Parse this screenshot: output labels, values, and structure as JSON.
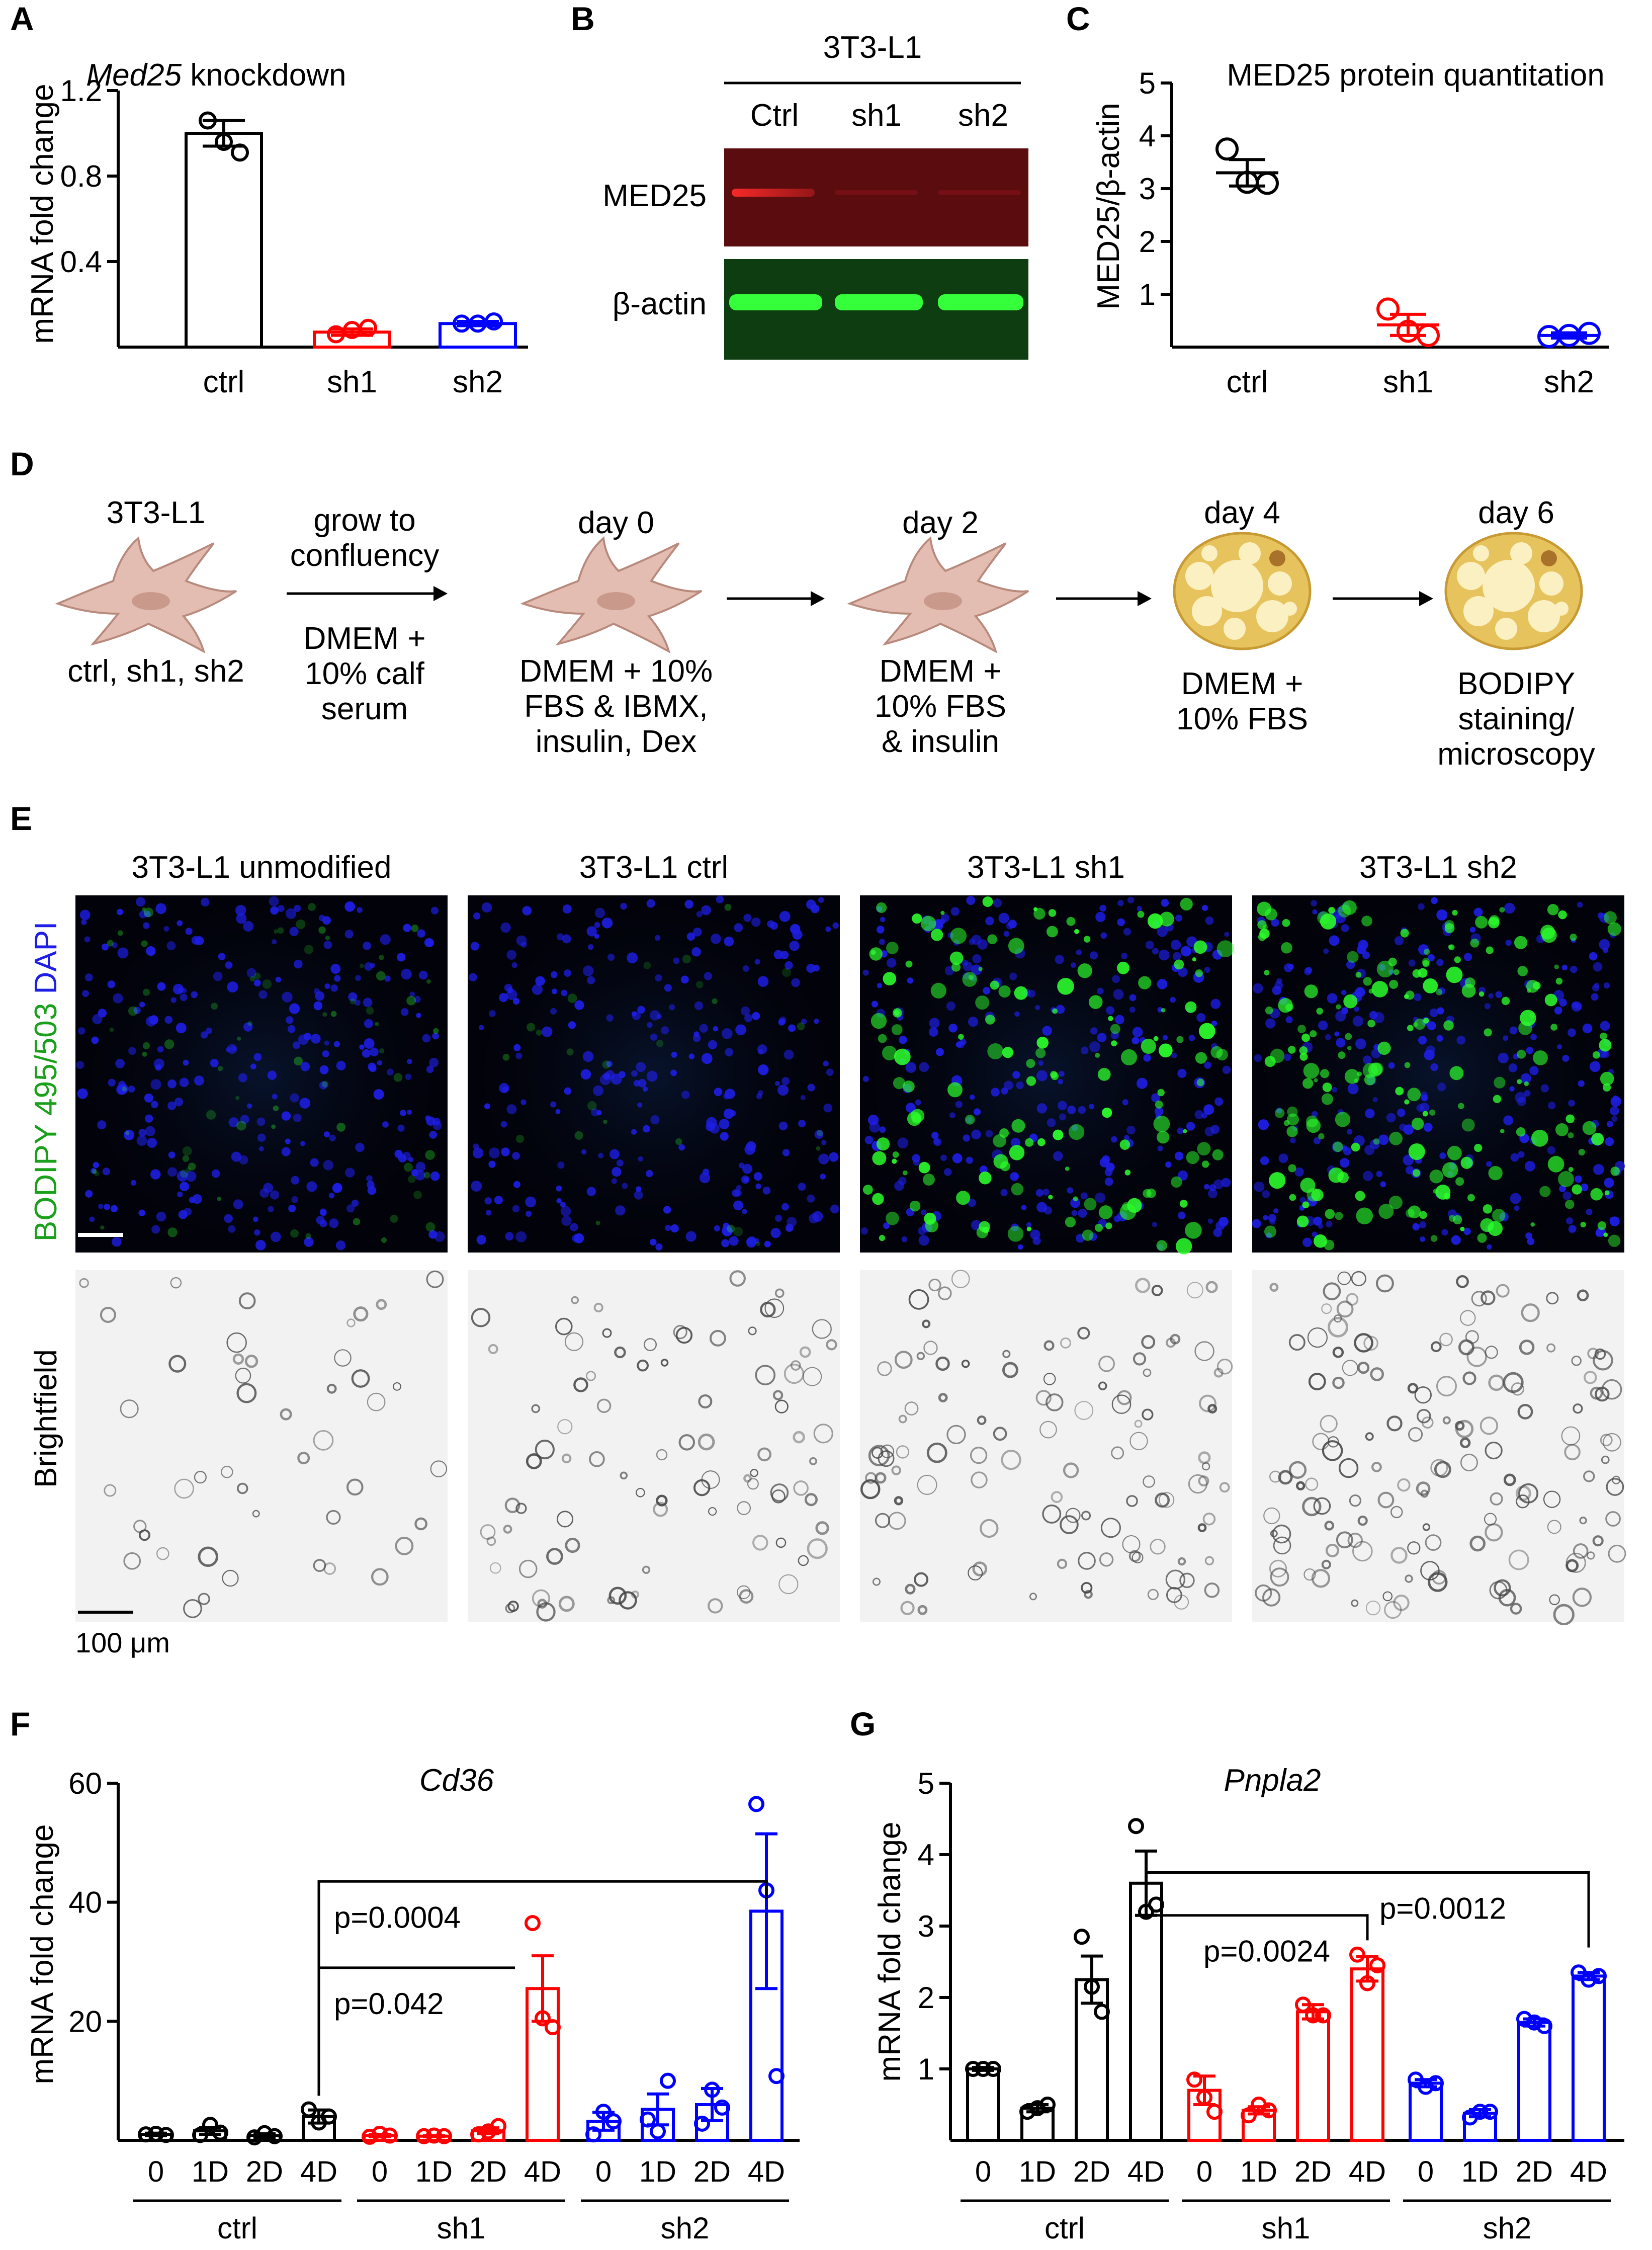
{
  "panels": {
    "A": {
      "letter": "A",
      "title_gene": "Med25",
      "title_rest": " knockdown",
      "ylabel": "mRNA fold change",
      "yticks": [
        "1.2",
        "0.8",
        "0.4"
      ],
      "ytick_values": [
        1.2,
        0.8,
        0.4
      ],
      "colors": [
        "#000000",
        "#ff0000",
        "#0000ff"
      ]
    },
    "B": {
      "letter": "B",
      "cell_line": "3T3-L1",
      "lanes": [
        "Ctrl",
        "sh1",
        "sh2"
      ],
      "rows": [
        "MED25",
        "β-actin"
      ],
      "colors": {
        "med25_bg": "#5a0c0f",
        "actin_bg": "#0f3d12",
        "red_band": "#ff2a2a",
        "green_band": "#34ff3a"
      }
    },
    "C": {
      "letter": "C",
      "title": "MED25 protein quantitation",
      "ylabel": "MED25/β-actin",
      "yticks": [
        "5",
        "4",
        "3",
        "2",
        "1"
      ],
      "ytick_values": [
        5,
        4,
        3,
        2,
        1
      ]
    },
    "D": {
      "letter": "D",
      "start_label": "3T3-L1",
      "start_sub": "ctrl, sh1, sh2",
      "step1_top": [
        "grow to",
        "confluency"
      ],
      "step1_bottom": [
        "DMEM +",
        "10% calf",
        "serum"
      ],
      "day0": "day 0",
      "day0_text": [
        "DMEM + 10%",
        "FBS & IBMX,",
        "insulin, Dex"
      ],
      "day2": "day 2",
      "day2_text": [
        "DMEM +",
        "10% FBS",
        "& insulin"
      ],
      "day4": "day 4",
      "day4_text": [
        "DMEM +",
        "10% FBS"
      ],
      "day6": "day 6",
      "day6_text": [
        "BODIPY",
        "staining/",
        "microscopy"
      ],
      "colors": {
        "fibroblast": "#e3bdb1",
        "fibroblast_stroke": "#b8897c",
        "nucleus": "#c9998c",
        "adipocyte": "#e7c35e",
        "lipid": "#fbf0c2",
        "adipocyte_stroke": "#c79a34"
      }
    },
    "E": {
      "letter": "E",
      "columns": [
        "3T3-L1 unmodified",
        "3T3-L1 ctrl",
        "3T3-L1 sh1",
        "3T3-L1 sh2"
      ],
      "row1_label_parts": [
        "BODIPY 495/503",
        "DAPI"
      ],
      "row2_label": "Brightfield",
      "scale_label": "100 μm",
      "colors": {
        "bodipy": "#1aa01a",
        "dapi": "#1e1ee6",
        "fluor_bg": "#02020a",
        "bf_bg": "#f2f2f2"
      }
    },
    "F": {
      "letter": "F",
      "title": "Cd36",
      "ylabel": "mRNA fold change",
      "yticks": [
        "60",
        "40",
        "20"
      ],
      "ytick_values": [
        60,
        40,
        20
      ],
      "time_labels": [
        "0",
        "1D",
        "2D",
        "4D"
      ],
      "groups": [
        "ctrl",
        "sh1",
        "sh2"
      ],
      "p1": "p=0.0004",
      "p2": "p=0.042"
    },
    "G": {
      "letter": "G",
      "title": "Pnpla2",
      "ylabel": "mRNA fold change",
      "yticks": [
        "5",
        "4",
        "3",
        "2",
        "1"
      ],
      "ytick_values": [
        5,
        4,
        3,
        2,
        1
      ],
      "time_labels": [
        "0",
        "1D",
        "2D",
        "4D"
      ],
      "groups": [
        "ctrl",
        "sh1",
        "sh2"
      ],
      "p1": "p=0.0024",
      "p2": "p=0.0012"
    }
  },
  "chart_data": [
    {
      "panel": "A",
      "type": "bar",
      "categories": [
        "ctrl",
        "sh1",
        "sh2"
      ],
      "values": [
        1.0,
        0.07,
        0.11
      ],
      "errors": [
        0.06,
        0.015,
        0.01
      ],
      "points": [
        [
          1.06,
          0.96,
          0.91
        ],
        [
          0.06,
          0.08,
          0.09
        ],
        [
          0.11,
          0.11,
          0.12
        ]
      ],
      "title": "Med25 knockdown",
      "ylabel": "mRNA fold change",
      "ylim": [
        0,
        1.2
      ]
    },
    {
      "panel": "C",
      "type": "scatter",
      "categories": [
        "ctrl",
        "sh1",
        "sh2"
      ],
      "values": [
        3.3,
        0.42,
        0.22
      ],
      "errors": [
        0.25,
        0.2,
        0.05
      ],
      "points": [
        [
          3.75,
          3.12,
          3.1
        ],
        [
          0.72,
          0.3,
          0.22
        ],
        [
          0.2,
          0.22,
          0.26
        ]
      ],
      "title": "MED25 protein quantitation",
      "ylabel": "MED25/β-actin",
      "ylim": [
        0,
        5
      ]
    },
    {
      "panel": "F",
      "type": "bar",
      "categories": [
        "0",
        "1D",
        "2D",
        "4D"
      ],
      "groups": [
        "ctrl",
        "sh1",
        "sh2"
      ],
      "series": [
        {
          "name": "ctrl",
          "values": [
            1.0,
            1.6,
            0.8,
            4.0
          ],
          "errors": [
            0.2,
            0.6,
            0.3,
            1.1
          ],
          "points": [
            [
              1.0,
              1.1,
              0.9
            ],
            [
              0.9,
              2.6,
              1.3
            ],
            [
              0.5,
              1.2,
              0.7
            ],
            [
              5.2,
              3.0,
              4.0
            ]
          ]
        },
        {
          "name": "sh1",
          "values": [
            0.8,
            0.7,
            1.6,
            25.5
          ],
          "errors": [
            0.2,
            0.1,
            0.5,
            5.5
          ],
          "points": [
            [
              0.6,
              1.1,
              0.8
            ],
            [
              0.7,
              0.8,
              0.7
            ],
            [
              1.0,
              1.5,
              2.4
            ],
            [
              36.5,
              20.5,
              19.0
            ]
          ]
        },
        {
          "name": "sh2",
          "values": [
            3.2,
            5.2,
            6.0,
            38.5
          ],
          "errors": [
            1.5,
            2.6,
            2.7,
            13.0
          ],
          "points": [
            [
              1.0,
              4.8,
              3.2
            ],
            [
              3.5,
              1.5,
              10.0
            ],
            [
              2.8,
              8.5,
              5.5
            ],
            [
              56.5,
              42.0,
              10.8
            ]
          ]
        }
      ],
      "title": "Cd36",
      "ylabel": "mRNA fold change",
      "ylim": [
        0,
        60
      ]
    },
    {
      "panel": "G",
      "type": "bar",
      "categories": [
        "0",
        "1D",
        "2D",
        "4D"
      ],
      "groups": [
        "ctrl",
        "sh1",
        "sh2"
      ],
      "series": [
        {
          "name": "ctrl",
          "values": [
            1.0,
            0.45,
            2.25,
            3.6
          ],
          "errors": [
            0.02,
            0.05,
            0.33,
            0.45
          ],
          "points": [
            [
              1.0,
              1.0,
              1.0
            ],
            [
              0.4,
              0.45,
              0.5
            ],
            [
              2.85,
              2.15,
              1.8
            ],
            [
              4.4,
              3.2,
              3.3
            ]
          ]
        },
        {
          "name": "sh1",
          "values": [
            0.7,
            0.42,
            1.8,
            2.4
          ],
          "errors": [
            0.2,
            0.05,
            0.1,
            0.17
          ],
          "points": [
            [
              0.85,
              0.6,
              0.4
            ],
            [
              0.35,
              0.5,
              0.42
            ],
            [
              1.9,
              1.75,
              1.75
            ],
            [
              2.6,
              2.2,
              2.45
            ]
          ]
        },
        {
          "name": "sh2",
          "values": [
            0.8,
            0.38,
            1.65,
            2.3
          ],
          "errors": [
            0.05,
            0.05,
            0.05,
            0.05
          ],
          "points": [
            [
              0.85,
              0.75,
              0.8
            ],
            [
              0.32,
              0.4,
              0.4
            ],
            [
              1.7,
              1.65,
              1.6
            ],
            [
              2.35,
              2.25,
              2.3
            ]
          ]
        }
      ],
      "title": "Pnpla2",
      "ylabel": "mRNA fold change",
      "ylim": [
        0,
        5
      ]
    }
  ]
}
